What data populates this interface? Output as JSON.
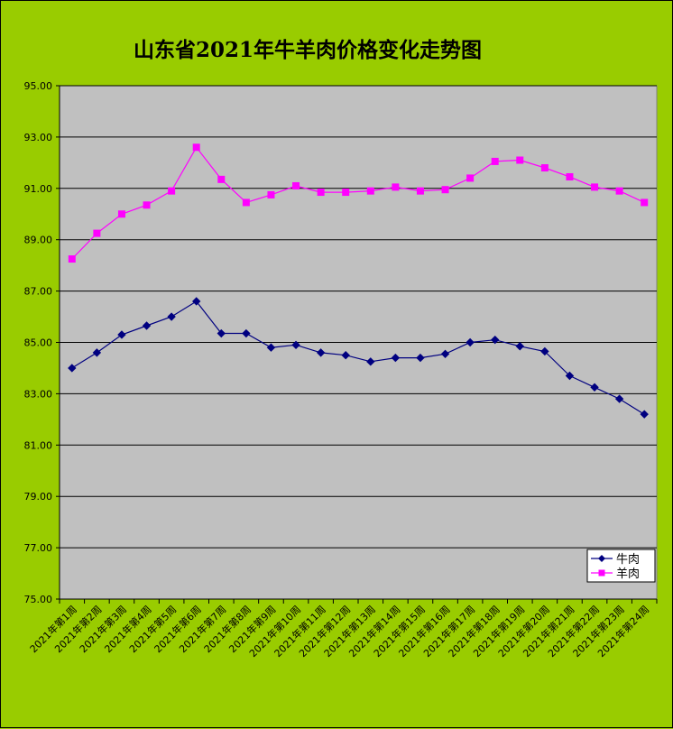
{
  "chart_data": {
    "type": "line",
    "title": "山东省2021年牛羊肉价格变化走势图",
    "xlabel": "",
    "ylabel": "",
    "ylim": [
      75,
      95
    ],
    "yticks": [
      "75.00",
      "77.00",
      "79.00",
      "81.00",
      "83.00",
      "85.00",
      "87.00",
      "89.00",
      "91.00",
      "93.00",
      "95.00"
    ],
    "grid": true,
    "legend_position": "bottom-right",
    "categories": [
      "2021年第1周",
      "2021年第2周",
      "2021年第3周",
      "2021年第4周",
      "2021年第5周",
      "2021年第6周",
      "2021年第7周",
      "2021年第8周",
      "2021年第9周",
      "2021年第10周",
      "2021年第11周",
      "2021年第12周",
      "2021年第13周",
      "2021年第14周",
      "2021年第15周",
      "2021年第16周",
      "2021年第17周",
      "2021年第18周",
      "2021年第19周",
      "2021年第20周",
      "2021年第21周",
      "2021年第22周",
      "2021年第23周",
      "2021年第24周"
    ],
    "series": [
      {
        "name": "牛肉",
        "color": "#000080",
        "marker": "diamond",
        "values": [
          84.0,
          84.6,
          85.3,
          85.65,
          86.0,
          86.6,
          85.35,
          85.35,
          84.8,
          84.9,
          84.6,
          84.5,
          84.25,
          84.4,
          84.4,
          84.55,
          85.0,
          85.1,
          84.85,
          84.65,
          83.7,
          83.25,
          82.8,
          82.2
        ]
      },
      {
        "name": "羊肉",
        "color": "#ff00ff",
        "marker": "square",
        "values": [
          88.25,
          89.25,
          90.0,
          90.35,
          90.9,
          92.6,
          91.35,
          90.45,
          90.75,
          91.1,
          90.85,
          90.85,
          90.9,
          91.05,
          90.9,
          90.95,
          91.4,
          92.05,
          92.1,
          91.8,
          91.45,
          91.05,
          90.9,
          90.45
        ]
      }
    ]
  },
  "colors": {
    "page_background": "#99cc00",
    "plot_background": "#c0c0c0",
    "gridline": "#000000"
  }
}
